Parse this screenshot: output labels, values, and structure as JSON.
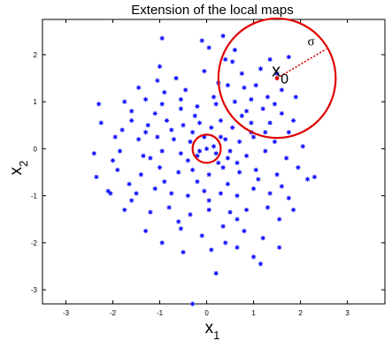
{
  "chart_data": {
    "type": "scatter",
    "title": "Extension of the local maps",
    "xlabel": {
      "base": "x",
      "sub": "1"
    },
    "ylabel": {
      "base": "x",
      "sub": "2"
    },
    "xlim": [
      -3.5,
      3.8
    ],
    "ylim": [
      -3.3,
      2.75
    ],
    "xticks": [
      "-3",
      "-2",
      "-1",
      "0",
      "1",
      "2",
      "3"
    ],
    "yticks": [
      "2",
      "1",
      "0",
      "-1",
      "-2",
      "-3"
    ],
    "grid": false,
    "marker": "asterisk",
    "colors": {
      "points": "#0000ff",
      "circles": "#e00000",
      "center_point": "#e00000",
      "sigma_line": "#e00000"
    },
    "points": [
      [
        -0.95,
        2.35
      ],
      [
        -0.1,
        2.3
      ],
      [
        0.35,
        2.4
      ],
      [
        0.05,
        2.15
      ],
      [
        0.6,
        2.1
      ],
      [
        0.55,
        1.85
      ],
      [
        1.35,
        1.9
      ],
      [
        1.75,
        1.95
      ],
      [
        1.15,
        1.7
      ],
      [
        1.5,
        1.6
      ],
      [
        -1.45,
        1.3
      ],
      [
        -0.9,
        1.2
      ],
      [
        -0.45,
        1.25
      ],
      [
        0.25,
        1.4
      ],
      [
        0.45,
        1.35
      ],
      [
        0.8,
        1.3
      ],
      [
        1.05,
        1.35
      ],
      [
        1.3,
        1.1
      ],
      [
        1.6,
        1.25
      ],
      [
        1.9,
        1.1
      ],
      [
        -2.3,
        0.95
      ],
      [
        -1.75,
        1.0
      ],
      [
        -1.3,
        1.05
      ],
      [
        -0.95,
        0.95
      ],
      [
        -0.55,
        1.05
      ],
      [
        -0.2,
        0.9
      ],
      [
        0.2,
        0.95
      ],
      [
        0.6,
        1.0
      ],
      [
        0.85,
        0.8
      ],
      [
        1.2,
        0.85
      ],
      [
        1.6,
        0.75
      ],
      [
        -2.25,
        0.55
      ],
      [
        -1.6,
        0.6
      ],
      [
        -1.25,
        0.5
      ],
      [
        -0.85,
        0.6
      ],
      [
        -0.5,
        0.5
      ],
      [
        -0.15,
        0.55
      ],
      [
        0.3,
        0.6
      ],
      [
        0.55,
        0.45
      ],
      [
        0.95,
        0.55
      ],
      [
        1.35,
        0.55
      ],
      [
        1.75,
        0.35
      ],
      [
        -1.95,
        0.25
      ],
      [
        -1.45,
        0.2
      ],
      [
        -1.05,
        0.25
      ],
      [
        -0.7,
        0.2
      ],
      [
        -0.35,
        0.15
      ],
      [
        -0.05,
        0.25
      ],
      [
        0.15,
        0.05
      ],
      [
        0.4,
        0.2
      ],
      [
        0.7,
        0.15
      ],
      [
        1.0,
        0.25
      ],
      [
        1.45,
        0.15
      ],
      [
        2.05,
        0.05
      ],
      [
        -2.4,
        -0.1
      ],
      [
        -1.85,
        -0.05
      ],
      [
        -1.35,
        -0.15
      ],
      [
        -0.95,
        -0.05
      ],
      [
        -0.55,
        -0.1
      ],
      [
        -0.2,
        -0.15
      ],
      [
        0.0,
        0.0
      ],
      [
        0.2,
        -0.1
      ],
      [
        0.5,
        -0.05
      ],
      [
        0.85,
        -0.15
      ],
      [
        1.25,
        -0.05
      ],
      [
        1.7,
        -0.2
      ],
      [
        -2.35,
        -0.6
      ],
      [
        -1.9,
        -0.45
      ],
      [
        -1.4,
        -0.55
      ],
      [
        -1.0,
        -0.4
      ],
      [
        -0.6,
        -0.5
      ],
      [
        -0.3,
        -0.45
      ],
      [
        0.05,
        -0.55
      ],
      [
        0.35,
        -0.4
      ],
      [
        0.7,
        -0.5
      ],
      [
        1.05,
        -0.45
      ],
      [
        1.5,
        -0.55
      ],
      [
        2.15,
        -0.65
      ],
      [
        2.3,
        -0.6
      ],
      [
        -2.1,
        -0.9
      ],
      [
        -1.5,
        -0.95
      ],
      [
        -1.1,
        -0.85
      ],
      [
        -0.75,
        -0.95
      ],
      [
        -0.4,
        -1.0
      ],
      [
        -0.05,
        -0.9
      ],
      [
        0.3,
        -0.95
      ],
      [
        0.65,
        -1.0
      ],
      [
        1.0,
        -0.85
      ],
      [
        1.35,
        -0.95
      ],
      [
        1.75,
        -1.05
      ],
      [
        -1.75,
        -1.3
      ],
      [
        -1.2,
        -1.35
      ],
      [
        -0.8,
        -1.25
      ],
      [
        -0.35,
        -1.4
      ],
      [
        0.05,
        -1.3
      ],
      [
        0.5,
        -1.35
      ],
      [
        0.85,
        -1.3
      ],
      [
        1.3,
        -1.25
      ],
      [
        1.85,
        -1.3
      ],
      [
        -1.3,
        -1.75
      ],
      [
        -0.55,
        -1.7
      ],
      [
        -0.1,
        -1.85
      ],
      [
        0.35,
        -1.65
      ],
      [
        0.8,
        -1.75
      ],
      [
        1.2,
        -1.9
      ],
      [
        -0.5,
        -2.2
      ],
      [
        0.1,
        -2.15
      ],
      [
        0.65,
        -2.1
      ],
      [
        1.55,
        -2.1
      ],
      [
        1.0,
        -2.3
      ],
      [
        1.15,
        -2.45
      ],
      [
        0.2,
        -2.65
      ],
      [
        -0.3,
        -3.3
      ],
      [
        -1.6,
        0.8
      ],
      [
        -1.1,
        0.75
      ],
      [
        -0.25,
        0.7
      ],
      [
        0.1,
        0.45
      ],
      [
        -0.75,
        0.4
      ],
      [
        -0.4,
        -0.25
      ],
      [
        0.25,
        -0.3
      ],
      [
        0.65,
        -0.3
      ],
      [
        -1.2,
        -0.2
      ],
      [
        1.1,
        -0.65
      ],
      [
        0.45,
        -0.75
      ],
      [
        -0.2,
        -0.7
      ],
      [
        -0.9,
        -0.7
      ],
      [
        -1.65,
        -0.75
      ],
      [
        0.95,
        1.05
      ],
      [
        1.45,
        0.95
      ],
      [
        -0.65,
        1.5
      ],
      [
        -0.05,
        1.65
      ],
      [
        0.75,
        1.6
      ],
      [
        -1.05,
        1.45
      ],
      [
        -2.0,
        -0.25
      ],
      [
        -1.6,
        -1.1
      ],
      [
        -0.6,
        -1.55
      ],
      [
        0.65,
        -1.5
      ],
      [
        1.55,
        -1.5
      ],
      [
        -0.95,
        -2.0
      ],
      [
        0.4,
        -2.0
      ],
      [
        0.95,
        0.35
      ],
      [
        1.85,
        0.6
      ],
      [
        -0.3,
        0.35
      ],
      [
        0.15,
        1.1
      ],
      [
        0.45,
        -0.2
      ],
      [
        -0.15,
        -0.05
      ],
      [
        0.3,
        0.25
      ],
      [
        -0.55,
        0.85
      ],
      [
        1.25,
        0.35
      ],
      [
        0.75,
        0.7
      ],
      [
        -1.3,
        0.35
      ],
      [
        -1.8,
        0.4
      ],
      [
        -2.05,
        -0.95
      ],
      [
        0.05,
        -1.1
      ],
      [
        1.6,
        -0.8
      ],
      [
        1.95,
        -0.4
      ],
      [
        -1.0,
        1.75
      ],
      [
        0.4,
        1.9
      ]
    ],
    "annotations": {
      "small_circle": {
        "center": [
          0.0,
          0.0
        ],
        "radius_x": 0.3,
        "radius_y": 0.3
      },
      "large_circle": {
        "center": [
          1.5,
          1.5
        ],
        "radius_x": 1.25,
        "radius_y": 1.27
      },
      "center_point": [
        1.5,
        1.5
      ],
      "center_label": {
        "base": "x",
        "sub": "0"
      },
      "sigma_label": "σ",
      "sigma_line": {
        "from": [
          1.5,
          1.5
        ],
        "to": [
          2.55,
          2.12
        ]
      }
    }
  }
}
